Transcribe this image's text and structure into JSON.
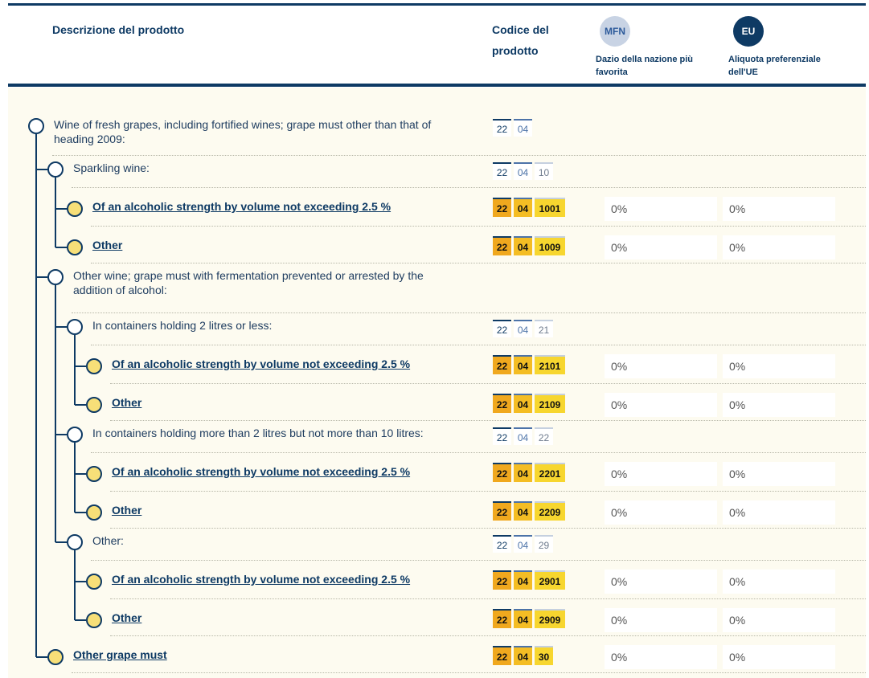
{
  "header": {
    "desc_label": "Descrizione del prodotto",
    "code_label": "Codice del prodotto",
    "mfn_badge": "MFN",
    "mfn_label": "Dazio della nazione più favorita",
    "eu_badge": "EU",
    "eu_label": "Aliquota preferenziale dell'UE"
  },
  "colors": {
    "brand_navy": "#0e3a64",
    "background": "#fdfbf0",
    "leaf_node": "#f7df78",
    "code_amber": "#f0a81e",
    "code_yellow": "#f7d62f"
  },
  "rows": [
    {
      "desc": "Wine of fresh grapes, including fortified wines; grape must other than that of heading 2009:",
      "code": [
        "22",
        "04"
      ],
      "mfn": "",
      "eu": ""
    },
    {
      "desc": "Sparkling wine:",
      "code": [
        "22",
        "04",
        "10"
      ],
      "mfn": "",
      "eu": ""
    },
    {
      "desc": "Of an alcoholic strength by volume not exceeding 2.5 %",
      "code": [
        "22",
        "04",
        "1001"
      ],
      "mfn": "0%",
      "eu": "0%"
    },
    {
      "desc": "Other",
      "code": [
        "22",
        "04",
        "1009"
      ],
      "mfn": "0%",
      "eu": "0%"
    },
    {
      "desc": "Other wine; grape must with fermentation prevented or arrested by the addition of alcohol:",
      "code": [],
      "mfn": "",
      "eu": ""
    },
    {
      "desc": "In containers holding 2 litres or less:",
      "code": [
        "22",
        "04",
        "21"
      ],
      "mfn": "",
      "eu": ""
    },
    {
      "desc": "Of an alcoholic strength by volume not exceeding 2.5 %",
      "code": [
        "22",
        "04",
        "2101"
      ],
      "mfn": "0%",
      "eu": "0%"
    },
    {
      "desc": "Other",
      "code": [
        "22",
        "04",
        "2109"
      ],
      "mfn": "0%",
      "eu": "0%"
    },
    {
      "desc": "In containers holding more than 2 litres but not more than 10 litres:",
      "code": [
        "22",
        "04",
        "22"
      ],
      "mfn": "",
      "eu": ""
    },
    {
      "desc": "Of an alcoholic strength by volume not exceeding 2.5 %",
      "code": [
        "22",
        "04",
        "2201"
      ],
      "mfn": "0%",
      "eu": "0%"
    },
    {
      "desc": "Other",
      "code": [
        "22",
        "04",
        "2209"
      ],
      "mfn": "0%",
      "eu": "0%"
    },
    {
      "desc": "Other:",
      "code": [
        "22",
        "04",
        "29"
      ],
      "mfn": "",
      "eu": ""
    },
    {
      "desc": "Of an alcoholic strength by volume not exceeding 2.5 %",
      "code": [
        "22",
        "04",
        "2901"
      ],
      "mfn": "0%",
      "eu": "0%"
    },
    {
      "desc": "Other",
      "code": [
        "22",
        "04",
        "2909"
      ],
      "mfn": "0%",
      "eu": "0%"
    },
    {
      "desc": "Other grape must",
      "code": [
        "22",
        "04",
        "30"
      ],
      "mfn": "0%",
      "eu": "0%"
    }
  ]
}
